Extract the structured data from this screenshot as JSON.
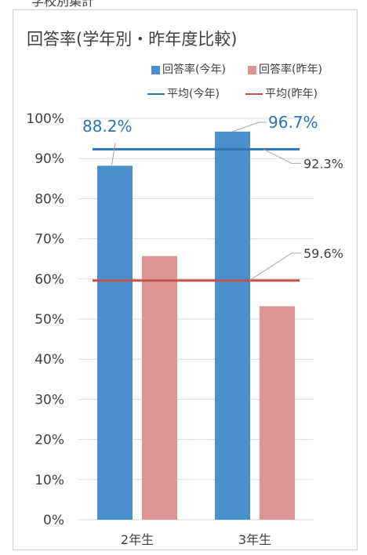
{
  "header_fragment": "学校別集計",
  "chart_data": {
    "type": "bar",
    "title": "回答率(学年別・昨年度比較)",
    "categories": [
      "2年生",
      "3年生"
    ],
    "series": [
      {
        "name": "回答率(今年)",
        "values": [
          0.882,
          0.967
        ],
        "color": "#4a90cd"
      },
      {
        "name": "回答率(昨年)",
        "values": [
          0.657,
          0.532
        ],
        "color": "#dc9593"
      }
    ],
    "lines": [
      {
        "name": "平均(今年)",
        "value": 0.923,
        "color": "#2e75b6"
      },
      {
        "name": "平均(昨年)",
        "value": 0.596,
        "color": "#c0504d"
      }
    ],
    "data_labels": [
      {
        "text": "88.2%",
        "series": 0,
        "category": 0,
        "style": "big"
      },
      {
        "text": "96.7%",
        "series": 0,
        "category": 1,
        "style": "big"
      },
      {
        "text": "92.3%",
        "line": 0,
        "style": "small"
      },
      {
        "text": "59.6%",
        "line": 1,
        "style": "small"
      }
    ],
    "y_ticks": [
      "0%",
      "10%",
      "20%",
      "30%",
      "40%",
      "50%",
      "60%",
      "70%",
      "80%",
      "90%",
      "100%"
    ],
    "ylim": [
      0,
      1
    ],
    "grid": true,
    "legend_position": "top-right",
    "xlabel": "",
    "ylabel": ""
  }
}
